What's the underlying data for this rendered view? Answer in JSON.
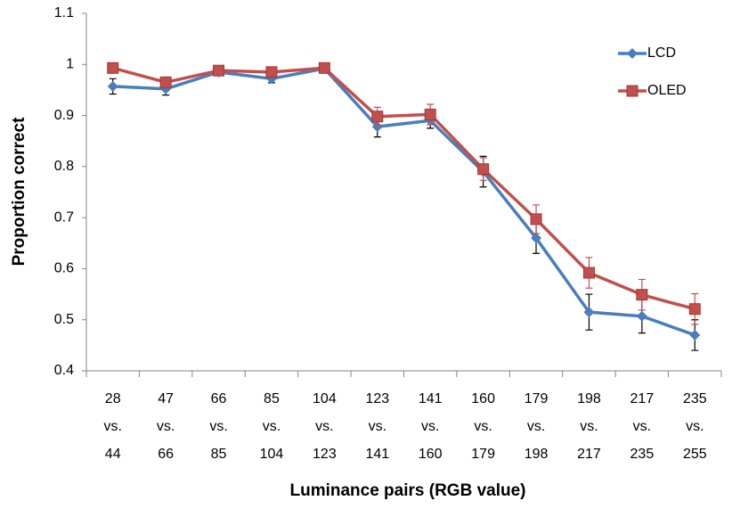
{
  "chart_data": {
    "type": "line",
    "xlabel": "Luminance pairs (RGB value)",
    "ylabel": "Proportion correct",
    "categories": [
      [
        "28",
        "vs.",
        "44"
      ],
      [
        "47",
        "vs.",
        "66"
      ],
      [
        "66",
        "vs.",
        "85"
      ],
      [
        "85",
        "vs.",
        "104"
      ],
      [
        "104",
        "vs.",
        "123"
      ],
      [
        "123",
        "vs.",
        "141"
      ],
      [
        "141",
        "vs.",
        "160"
      ],
      [
        "160",
        "vs.",
        "179"
      ],
      [
        "179",
        "vs.",
        "198"
      ],
      [
        "198",
        "vs.",
        "217"
      ],
      [
        "217",
        "vs.",
        "235"
      ],
      [
        "235",
        "vs.",
        "255"
      ]
    ],
    "series": [
      {
        "name": "LCD",
        "color": "#4a7ebb",
        "marker": "diamond",
        "error_color": "#000000",
        "values": [
          0.957,
          0.952,
          0.985,
          0.972,
          0.992,
          0.878,
          0.89,
          0.79,
          0.66,
          0.515,
          0.507,
          0.47
        ],
        "errors": [
          0.015,
          0.012,
          0.005,
          0.008,
          0.004,
          0.02,
          0.015,
          0.03,
          0.03,
          0.035,
          0.033,
          0.03
        ]
      },
      {
        "name": "OLED",
        "color": "#c0504d",
        "marker": "square",
        "error_color": "#c0504d",
        "values": [
          0.993,
          0.965,
          0.988,
          0.985,
          0.993,
          0.898,
          0.902,
          0.795,
          0.697,
          0.592,
          0.549,
          0.521
        ],
        "errors": [
          0.005,
          0.01,
          0.005,
          0.005,
          0.004,
          0.018,
          0.02,
          0.022,
          0.028,
          0.03,
          0.03,
          0.03
        ]
      }
    ],
    "ylim": [
      0.4,
      1.1
    ],
    "yticks": [
      0.4,
      0.5,
      0.6,
      0.7,
      0.8,
      0.9,
      1,
      1.1
    ],
    "grid": false,
    "legend": "upper right"
  }
}
